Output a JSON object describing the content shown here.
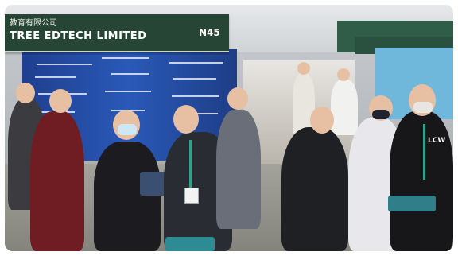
{
  "photo": {
    "booth_subtitle": "教育有限公司",
    "booth_company": "TREE EDTECH LIMITED",
    "booth_number": "N45",
    "badge_text": "LCW"
  }
}
